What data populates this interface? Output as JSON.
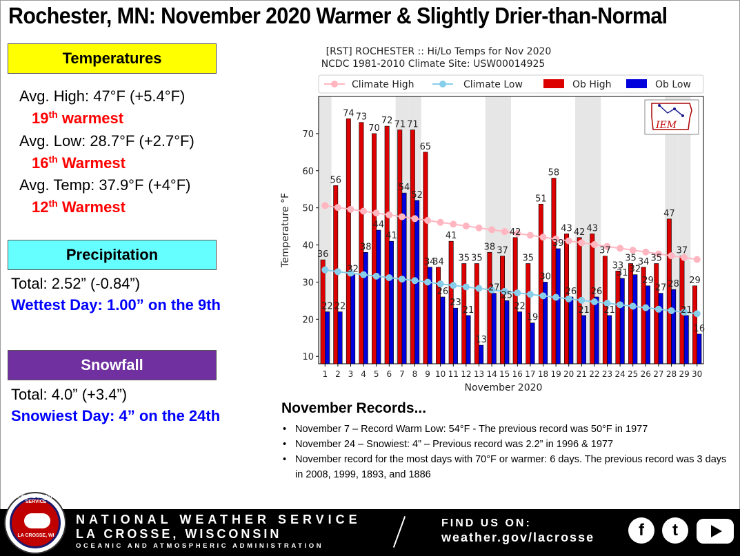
{
  "title": "Rochester, MN:  November 2020 Warmer & Slightly Drier-than-Normal",
  "temperatures": {
    "header": "Temperatures",
    "avg_high": "Avg. High:  47°F (+5.4°F)",
    "avg_high_rank_num": "19",
    "avg_high_rank_sup": "th",
    "avg_high_rank_word": " warmest",
    "avg_low": "Avg. Low:  28.7°F (+2.7°F)",
    "avg_low_rank_num": "16",
    "avg_low_rank_sup": "th",
    "avg_low_rank_word": " Warmest",
    "avg_temp": "Avg. Temp:  37.9°F (+4°F)",
    "avg_temp_rank_num": "12",
    "avg_temp_rank_sup": "th",
    "avg_temp_rank_word": " Warmest"
  },
  "precipitation": {
    "header": "Precipitation",
    "total": "Total:  2.52” (-0.84”)",
    "wettest": "Wettest Day: 1.00” on the 9th"
  },
  "snowfall": {
    "header": "Snowfall",
    "total": "Total:  4.0” (+3.4”)",
    "snowiest": "Snowiest Day:  4” on the 24th"
  },
  "records": {
    "title": "November Records...",
    "items": [
      "November 7 – Record Warm Low:  54°F - The previous record was 50°F in 1977",
      "November 24 – Snowiest:  4” – Previous record was 2.2” in 1996 & 1977",
      "November record for the most days with 70°F or warmer:  6 days.  The previous record was 3 days in 2008, 1999, 1893, and 1886"
    ]
  },
  "footer": {
    "line1": "NATIONAL WEATHER SERVICE",
    "line2": "LA CROSSE, WISCONSIN",
    "line3": "OCEANIC AND ATMOSPHERIC ADMINISTRATION",
    "find_us": "FIND US ON:",
    "url": "weather.gov/lacrosse",
    "logo_top": "NATIONAL WEATHER SERVICE",
    "logo_bottom": "LA CROSSE, WI",
    "facebook_icon": "f",
    "twitter_icon": "t"
  },
  "colors": {
    "ob_high": "#dd0000",
    "ob_low": "#0000dd",
    "climate_high": "#ffb6c1",
    "climate_low": "#87ceeb",
    "weekend_band": "#e6e6e6"
  },
  "chart_data": {
    "type": "bar",
    "title": "[RST] ROCHESTER :: Hi/Lo Temps for Nov 2020",
    "subtitle": "NCDC 1981-2010 Climate Site: USW00014925",
    "xlabel": "November 2020",
    "ylabel": "Temperature  °F",
    "ylim": [
      8,
      80
    ],
    "yticks": [
      10,
      20,
      30,
      40,
      50,
      60,
      70
    ],
    "categories": [
      "1",
      "2",
      "3",
      "4",
      "5",
      "6",
      "7",
      "8",
      "9",
      "10",
      "11",
      "12",
      "13",
      "14",
      "15",
      "16",
      "17",
      "18",
      "19",
      "20",
      "21",
      "22",
      "23",
      "24",
      "25",
      "26",
      "27",
      "28",
      "29",
      "30"
    ],
    "weekend_days": [
      1,
      7,
      8,
      14,
      15,
      21,
      22,
      28,
      29
    ],
    "legend": [
      "Climate High",
      "Climate Low",
      "Ob High",
      "Ob Low"
    ],
    "legend_position": "top",
    "logo_text": "IEM",
    "series": [
      {
        "name": "Ob High",
        "values": [
          36,
          56,
          74,
          73,
          70,
          72,
          71,
          71,
          65,
          34,
          41,
          35,
          35,
          38,
          37,
          42,
          35,
          51,
          58,
          43,
          42,
          43,
          37,
          33,
          35,
          34,
          35,
          47,
          37,
          29
        ]
      },
      {
        "name": "Ob Low",
        "values": [
          22,
          22,
          32,
          38,
          44,
          41,
          54,
          52,
          34,
          26,
          23,
          21,
          13,
          27,
          25,
          22,
          19,
          30,
          39,
          26,
          21,
          26,
          21,
          31,
          32,
          29,
          27,
          28,
          21,
          16
        ]
      },
      {
        "name": "Climate High",
        "values": [
          50.6,
          50.1,
          49.6,
          49.1,
          48.6,
          48.1,
          47.6,
          47.1,
          46.6,
          46.1,
          45.6,
          45.1,
          44.6,
          44.1,
          43.6,
          43.1,
          42.6,
          42.1,
          41.6,
          41.1,
          40.6,
          40.1,
          39.6,
          39.1,
          38.6,
          38.1,
          37.6,
          37.1,
          36.6,
          36.1
        ]
      },
      {
        "name": "Climate Low",
        "values": [
          33.3,
          32.8,
          32.4,
          32.0,
          31.6,
          31.2,
          30.8,
          30.4,
          30.0,
          29.5,
          29.1,
          28.7,
          28.3,
          27.9,
          27.5,
          27.1,
          26.7,
          26.3,
          25.9,
          25.5,
          25.1,
          24.7,
          24.3,
          23.9,
          23.5,
          23.1,
          22.7,
          22.3,
          21.9,
          21.5
        ]
      }
    ]
  }
}
